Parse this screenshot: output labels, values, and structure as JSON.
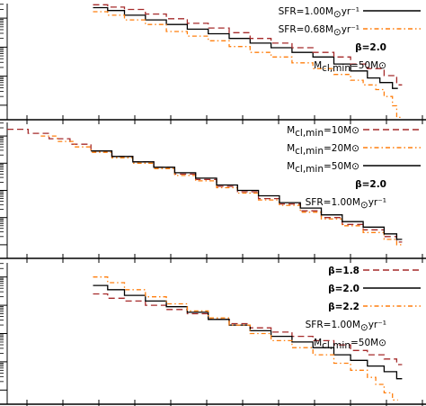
{
  "colors": {
    "black": "#000000",
    "darkred": "#a52a2a",
    "orange": "#ff7f0e"
  },
  "chart_data": [
    {
      "type": "line",
      "step": true,
      "log_axes": true,
      "x_range": [
        0.0,
        1.0
      ],
      "y_range": [
        0.0,
        1.0
      ],
      "series": [
        {
          "legend": {
            "main": "SFR=1.00M",
            "sub": "⊙",
            "tail": "yr⁻¹"
          },
          "color": "#000000",
          "dash": "solid",
          "points": [
            [
              0.205,
              0.965
            ],
            [
              0.24,
              0.94
            ],
            [
              0.28,
              0.9
            ],
            [
              0.33,
              0.86
            ],
            [
              0.38,
              0.82
            ],
            [
              0.43,
              0.78
            ],
            [
              0.48,
              0.74
            ],
            [
              0.53,
              0.7
            ],
            [
              0.58,
              0.66
            ],
            [
              0.63,
              0.62
            ],
            [
              0.68,
              0.58
            ],
            [
              0.73,
              0.54
            ],
            [
              0.78,
              0.48
            ],
            [
              0.82,
              0.42
            ],
            [
              0.86,
              0.36
            ],
            [
              0.89,
              0.32
            ],
            [
              0.92,
              0.27
            ]
          ]
        },
        {
          "legend": {
            "main": "SFR=0.68M",
            "sub": "⊙",
            "tail": "yr⁻¹"
          },
          "color": "#ff7f0e",
          "dash": "dashdot",
          "points": [
            [
              0.205,
              0.93
            ],
            [
              0.24,
              0.9
            ],
            [
              0.28,
              0.86
            ],
            [
              0.33,
              0.82
            ],
            [
              0.38,
              0.76
            ],
            [
              0.43,
              0.72
            ],
            [
              0.48,
              0.68
            ],
            [
              0.53,
              0.63
            ],
            [
              0.58,
              0.58
            ],
            [
              0.63,
              0.54
            ],
            [
              0.68,
              0.49
            ],
            [
              0.73,
              0.44
            ],
            [
              0.78,
              0.39
            ],
            [
              0.82,
              0.34
            ],
            [
              0.85,
              0.3
            ],
            [
              0.88,
              0.26
            ],
            [
              0.9,
              0.2
            ],
            [
              0.92,
              0.12
            ],
            [
              0.93,
              0.02
            ]
          ]
        },
        {
          "legend": null,
          "color": "#a52a2a",
          "dash": "dashed",
          "points": [
            [
              0.205,
              0.99
            ],
            [
              0.24,
              0.97
            ],
            [
              0.28,
              0.95
            ],
            [
              0.33,
              0.91
            ],
            [
              0.38,
              0.87
            ],
            [
              0.43,
              0.83
            ],
            [
              0.48,
              0.79
            ],
            [
              0.53,
              0.75
            ],
            [
              0.58,
              0.7
            ],
            [
              0.63,
              0.66
            ],
            [
              0.68,
              0.62
            ],
            [
              0.73,
              0.58
            ],
            [
              0.78,
              0.54
            ],
            [
              0.82,
              0.48
            ],
            [
              0.86,
              0.44
            ],
            [
              0.9,
              0.38
            ],
            [
              0.93,
              0.3
            ]
          ]
        }
      ],
      "annotations": [
        {
          "main": "β=2.0",
          "sub": "",
          "tail": "",
          "bold": true
        },
        {
          "main": "M",
          "sub": "cl,min",
          "tail": "=50M⊙",
          "bold": false
        }
      ]
    },
    {
      "type": "line",
      "step": true,
      "log_axes": true,
      "x_range": [
        0.0,
        1.0
      ],
      "y_range": [
        0.0,
        1.0
      ],
      "series": [
        {
          "legend": {
            "main": "M",
            "sub": "cl,min",
            "tail": "=10M⊙"
          },
          "color": "#a52a2a",
          "dash": "dashed",
          "points": [
            [
              0.0,
              0.95
            ],
            [
              0.05,
              0.92
            ],
            [
              0.1,
              0.88
            ],
            [
              0.15,
              0.84
            ],
            [
              0.2,
              0.79
            ],
            [
              0.25,
              0.75
            ],
            [
              0.3,
              0.71
            ],
            [
              0.35,
              0.67
            ],
            [
              0.4,
              0.62
            ],
            [
              0.45,
              0.58
            ],
            [
              0.5,
              0.53
            ],
            [
              0.55,
              0.49
            ],
            [
              0.6,
              0.44
            ],
            [
              0.65,
              0.4
            ],
            [
              0.7,
              0.35
            ],
            [
              0.75,
              0.3
            ],
            [
              0.8,
              0.25
            ],
            [
              0.85,
              0.21
            ],
            [
              0.9,
              0.16
            ],
            [
              0.93,
              0.12
            ]
          ]
        },
        {
          "legend": {
            "main": "M",
            "sub": "cl,min",
            "tail": "=20M⊙"
          },
          "color": "#ff7f0e",
          "dash": "dashdot",
          "points": [
            [
              0.08,
              0.9
            ],
            [
              0.12,
              0.86
            ],
            [
              0.16,
              0.82
            ],
            [
              0.2,
              0.78
            ],
            [
              0.25,
              0.74
            ],
            [
              0.3,
              0.7
            ],
            [
              0.35,
              0.66
            ],
            [
              0.4,
              0.61
            ],
            [
              0.45,
              0.57
            ],
            [
              0.5,
              0.52
            ],
            [
              0.55,
              0.48
            ],
            [
              0.6,
              0.43
            ],
            [
              0.65,
              0.39
            ],
            [
              0.7,
              0.34
            ],
            [
              0.75,
              0.29
            ],
            [
              0.8,
              0.24
            ],
            [
              0.85,
              0.19
            ],
            [
              0.9,
              0.14
            ],
            [
              0.93,
              0.1
            ]
          ]
        },
        {
          "legend": {
            "main": "M",
            "sub": "cl,min",
            "tail": "=50M⊙"
          },
          "color": "#000000",
          "dash": "solid",
          "points": [
            [
              0.2,
              0.79
            ],
            [
              0.25,
              0.75
            ],
            [
              0.3,
              0.71
            ],
            [
              0.35,
              0.67
            ],
            [
              0.4,
              0.63
            ],
            [
              0.45,
              0.59
            ],
            [
              0.5,
              0.54
            ],
            [
              0.55,
              0.5
            ],
            [
              0.6,
              0.46
            ],
            [
              0.65,
              0.41
            ],
            [
              0.7,
              0.37
            ],
            [
              0.75,
              0.32
            ],
            [
              0.8,
              0.27
            ],
            [
              0.85,
              0.23
            ],
            [
              0.9,
              0.18
            ],
            [
              0.93,
              0.14
            ]
          ]
        }
      ],
      "annotations": [
        {
          "main": "β=2.0",
          "sub": "",
          "tail": "",
          "bold": true
        },
        {
          "main": "SFR=1.00M",
          "sub": "⊙",
          "tail": "yr⁻¹",
          "bold": false
        }
      ]
    },
    {
      "type": "line",
      "step": true,
      "log_axes": true,
      "x_range": [
        0.0,
        1.0
      ],
      "y_range": [
        0.0,
        1.0
      ],
      "series": [
        {
          "legend": {
            "main": "β=1.8",
            "sub": "",
            "tail": "",
            "bold": true
          },
          "color": "#a52a2a",
          "dash": "dashed",
          "points": [
            [
              0.205,
              0.78
            ],
            [
              0.24,
              0.75
            ],
            [
              0.28,
              0.73
            ],
            [
              0.33,
              0.7
            ],
            [
              0.38,
              0.67
            ],
            [
              0.43,
              0.64
            ],
            [
              0.48,
              0.6
            ],
            [
              0.53,
              0.57
            ],
            [
              0.58,
              0.54
            ],
            [
              0.63,
              0.51
            ],
            [
              0.68,
              0.48
            ],
            [
              0.73,
              0.45
            ],
            [
              0.78,
              0.42
            ],
            [
              0.82,
              0.38
            ],
            [
              0.86,
              0.35
            ],
            [
              0.9,
              0.32
            ],
            [
              0.93,
              0.28
            ]
          ]
        },
        {
          "legend": {
            "main": "β=2.0",
            "sub": "",
            "tail": "",
            "bold": true
          },
          "color": "#000000",
          "dash": "solid",
          "points": [
            [
              0.205,
              0.84
            ],
            [
              0.24,
              0.81
            ],
            [
              0.28,
              0.77
            ],
            [
              0.33,
              0.73
            ],
            [
              0.38,
              0.69
            ],
            [
              0.43,
              0.65
            ],
            [
              0.48,
              0.6
            ],
            [
              0.53,
              0.56
            ],
            [
              0.58,
              0.52
            ],
            [
              0.63,
              0.48
            ],
            [
              0.68,
              0.44
            ],
            [
              0.73,
              0.4
            ],
            [
              0.78,
              0.35
            ],
            [
              0.82,
              0.31
            ],
            [
              0.86,
              0.27
            ],
            [
              0.9,
              0.23
            ],
            [
              0.93,
              0.18
            ]
          ]
        },
        {
          "legend": {
            "main": "β=2.2",
            "sub": "",
            "tail": "",
            "bold": true
          },
          "color": "#ff7f0e",
          "dash": "dashdot",
          "points": [
            [
              0.205,
              0.9
            ],
            [
              0.24,
              0.86
            ],
            [
              0.28,
              0.81
            ],
            [
              0.33,
              0.76
            ],
            [
              0.38,
              0.71
            ],
            [
              0.43,
              0.66
            ],
            [
              0.48,
              0.61
            ],
            [
              0.53,
              0.56
            ],
            [
              0.58,
              0.5
            ],
            [
              0.63,
              0.45
            ],
            [
              0.68,
              0.4
            ],
            [
              0.73,
              0.35
            ],
            [
              0.78,
              0.29
            ],
            [
              0.82,
              0.24
            ],
            [
              0.86,
              0.19
            ],
            [
              0.88,
              0.14
            ],
            [
              0.9,
              0.08
            ],
            [
              0.92,
              0.03
            ]
          ]
        }
      ],
      "annotations": [
        {
          "main": "SFR=1.00M",
          "sub": "⊙",
          "tail": "yr⁻¹",
          "bold": false
        },
        {
          "main": "M",
          "sub": "cl,min",
          "tail": "=50M⊙",
          "bold": false
        }
      ]
    }
  ]
}
